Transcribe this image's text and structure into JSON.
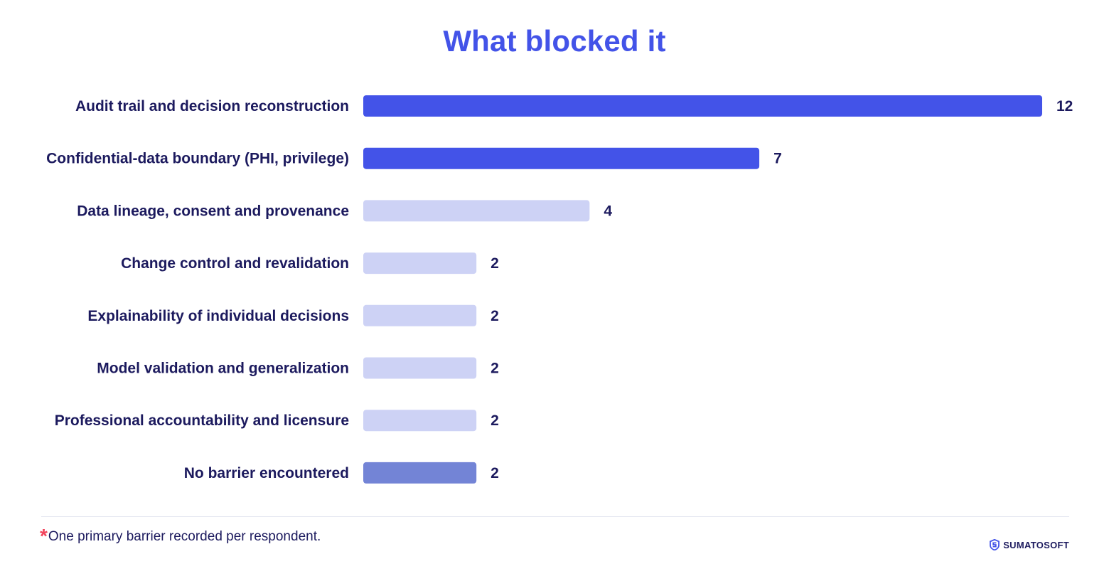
{
  "colors": {
    "title": "#4353e8",
    "text": "#1c1a5e",
    "bar_primary": "#4353e8",
    "bar_light": "#cdd2f5",
    "bar_medium": "#7384d6",
    "accent_star": "#f2445c"
  },
  "footnote": {
    "star": "*",
    "text": "One primary barrier recorded per respondent."
  },
  "logo": {
    "icon": "sumatosoft-logo-icon",
    "text": "SUMATOSOFT"
  },
  "chart_data": {
    "type": "bar",
    "orientation": "horizontal",
    "title": "What blocked it",
    "xlabel": "",
    "ylabel": "",
    "grid": false,
    "xlim": [
      0,
      12
    ],
    "categories": [
      "Audit trail and decision reconstruction",
      "Confidential-data boundary (PHI, privilege)",
      "Data lineage, consent and provenance",
      "Change control and revalidation",
      "Explainability of individual decisions",
      "Model validation and generalization",
      "Professional accountability and licensure",
      "No barrier encountered"
    ],
    "values": [
      12,
      7,
      4,
      2,
      2,
      2,
      2,
      2
    ],
    "bar_colors": [
      "#4353e8",
      "#4353e8",
      "#cdd2f5",
      "#cdd2f5",
      "#cdd2f5",
      "#cdd2f5",
      "#cdd2f5",
      "#7384d6"
    ]
  }
}
